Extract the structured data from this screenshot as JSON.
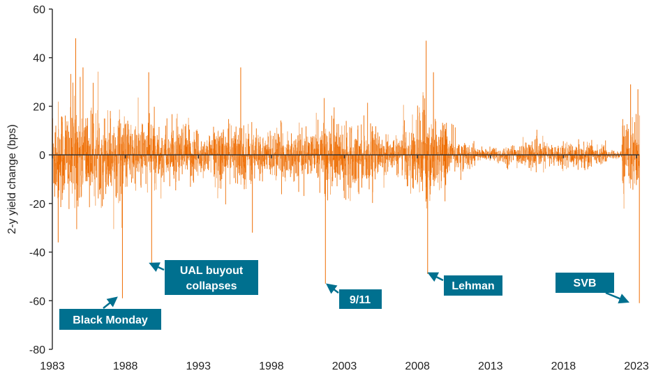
{
  "chart_data": {
    "type": "bar",
    "title": "",
    "xlabel": "",
    "ylabel": "2-y yield change (bps)",
    "xlim": [
      1983,
      2023
    ],
    "ylim": [
      -80,
      60
    ],
    "y_ticks": [
      "60",
      "40",
      "20",
      "0",
      "-20",
      "-40",
      "-60",
      "-80"
    ],
    "x_ticks": [
      "1983",
      "1988",
      "1993",
      "1998",
      "2003",
      "2008",
      "2013",
      "2018",
      "2023"
    ],
    "grid": false,
    "legend": "none",
    "bar_color": "#EE6C00",
    "annotation_color": "#00708F",
    "typical_daily_range_by_year": {
      "years": [
        1983,
        1984,
        1985,
        1986,
        1987,
        1988,
        1989,
        1990,
        1991,
        1992,
        1993,
        1994,
        1995,
        1996,
        1997,
        1998,
        1999,
        2000,
        2001,
        2002,
        2003,
        2004,
        2005,
        2006,
        2007,
        2008,
        2009,
        2010,
        2011,
        2012,
        2013,
        2014,
        2015,
        2016,
        2017,
        2018,
        2019,
        2020,
        2021,
        2022,
        2023
      ],
      "amplitude_bps": [
        12,
        14,
        11,
        10,
        10,
        8,
        9,
        7,
        7,
        7,
        5,
        8,
        7,
        7,
        5,
        6,
        6,
        5,
        8,
        8,
        8,
        7,
        5,
        4,
        8,
        13,
        8,
        5,
        3,
        1.5,
        2,
        2.5,
        3,
        3,
        2.5,
        3,
        3.5,
        2,
        1,
        8,
        10
      ]
    },
    "notable_moves": [
      {
        "x": 1983.4,
        "y": -36
      },
      {
        "x": 1984.6,
        "y": 48
      },
      {
        "x": 1985.1,
        "y": 36
      },
      {
        "x": 1987.8,
        "y": -59
      },
      {
        "x": 1989.6,
        "y": 34
      },
      {
        "x": 1989.8,
        "y": -45
      },
      {
        "x": 1995.9,
        "y": 36
      },
      {
        "x": 1996.7,
        "y": -32
      },
      {
        "x": 2001.7,
        "y": -53
      },
      {
        "x": 2008.6,
        "y": 47
      },
      {
        "x": 2008.7,
        "y": -49
      },
      {
        "x": 2009.1,
        "y": 34
      },
      {
        "x": 2022.6,
        "y": 29
      },
      {
        "x": 2023.1,
        "y": 27
      },
      {
        "x": 2023.2,
        "y": -61
      }
    ],
    "annotations": [
      {
        "label": "Black Monday",
        "x": 1987.8,
        "y": -59
      },
      {
        "label": "UAL buyout collapses",
        "line1": "UAL buyout",
        "line2": "collapses",
        "x": 1989.8,
        "y": -45
      },
      {
        "label": "9/11",
        "x": 2001.7,
        "y": -53
      },
      {
        "label": "Lehman",
        "x": 2008.7,
        "y": -49
      },
      {
        "label": "SVB",
        "x": 2023.2,
        "y": -61
      }
    ]
  }
}
